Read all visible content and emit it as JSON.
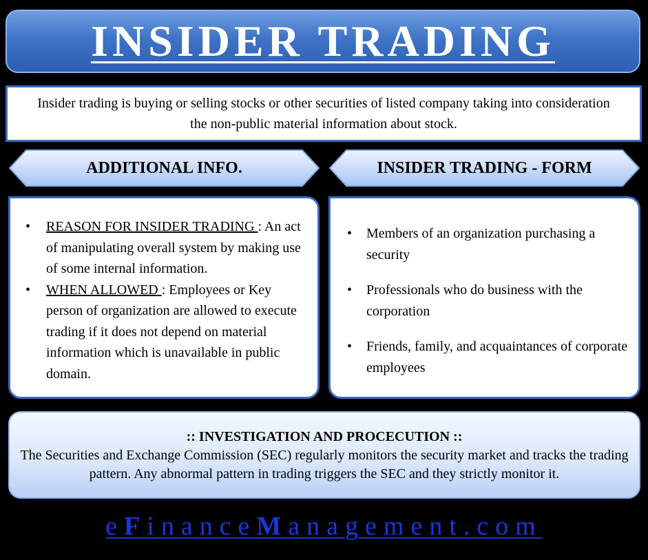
{
  "title": "INSIDER TRADING",
  "intro": "Insider trading is buying or selling stocks or other securities of listed company taking into consideration the non-public material information about stock.",
  "left_panel": {
    "header": "ADDITIONAL INFO.",
    "items": [
      {
        "term": "REASON FOR INSIDER TRADING ",
        "separator": ":",
        "text": "An act of manipulating overall system by making use of some internal information."
      },
      {
        "term": "WHEN ALLOWED ",
        "separator": ":",
        "text": "Employees or Key person of organization are allowed to execute trading if it does not depend on material information which is unavailable in public domain."
      }
    ]
  },
  "right_panel": {
    "header": "INSIDER TRADING - FORM",
    "items": [
      "Members of an organization purchasing a security",
      "Professionals who do business with the corporation",
      "Friends, family, and acquaintances of corporate employees"
    ]
  },
  "investigation": {
    "title": ":: INVESTIGATION AND PROCECUTION ::",
    "text": "The Securities and Exchange Commission (SEC) regularly monitors the security market and tracks the trading pattern. Any abnormal pattern in trading triggers the SEC and they strictly monitor it."
  },
  "footer": {
    "part1": "e",
    "part2": "F",
    "part3": "inance",
    "part4": "M",
    "part5": "anagement.com"
  },
  "colors": {
    "banner": "#3f73c6",
    "border": "#3a6bc0",
    "header_fill": "#c9dcfa",
    "footer_text": "#1c36d8"
  },
  "bullet": "•"
}
